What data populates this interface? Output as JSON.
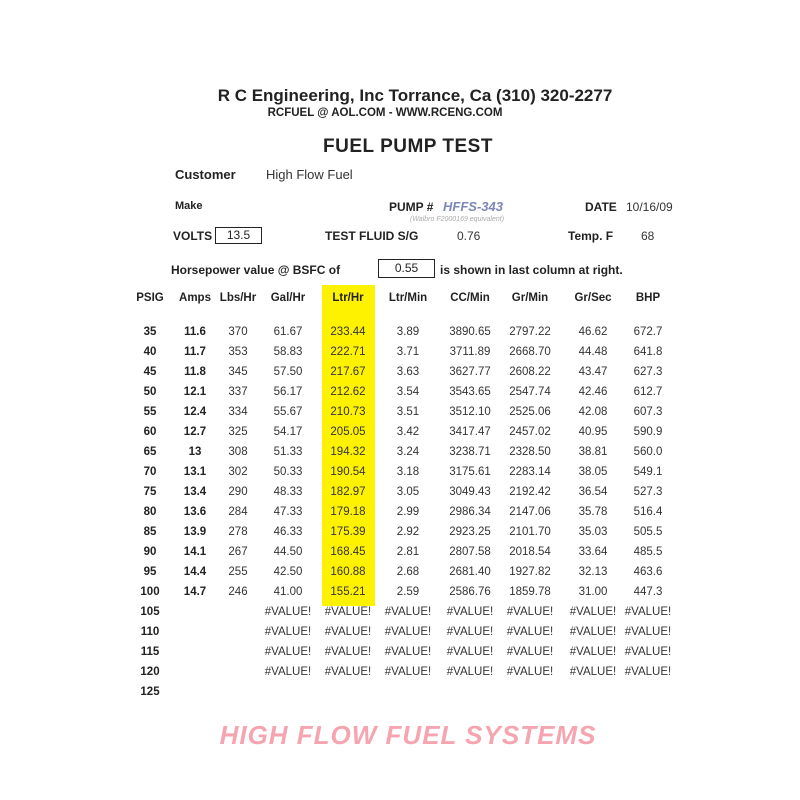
{
  "header": {
    "company": "R C Engineering, Inc  Torrance,  Ca  (310) 320-2277",
    "contact": "RCFUEL @ AOL.COM -  WWW.RCENG.COM",
    "title": "FUEL PUMP TEST"
  },
  "info": {
    "customer_label": "Customer",
    "customer_value": "High Flow Fuel",
    "make_label": "Make",
    "pump_label": "PUMP #",
    "pump_value": "HFFS-343",
    "pump_note": "(Walbro F2000169 equivalent)",
    "date_label": "DATE",
    "date_value": "10/16/09",
    "volts_label": "VOLTS",
    "volts_value": "13.5",
    "fluid_label": "TEST FLUID  S/G",
    "fluid_value": "0.76",
    "temp_label": "Temp.  F",
    "temp_value": "68",
    "hp_label": "Horsepower value @  BSFC of",
    "bsfc_value": "0.55",
    "hp_suffix": "is shown in last column at right."
  },
  "watermark": "HIGH FLOW FUEL SYSTEMS",
  "colors": {
    "highlight": "#fff200",
    "pump": "#7c86b8",
    "watermark": "#ee5a6e"
  },
  "table": {
    "columns": [
      "PSIG",
      "Amps",
      "Lbs/Hr",
      "Gal/Hr",
      "Ltr/Hr",
      "Ltr/Min",
      "CC/Min",
      "Gr/Min",
      "Gr/Sec",
      "BHP"
    ],
    "rows": [
      [
        "35",
        "11.6",
        "370",
        "61.67",
        "233.44",
        "3.89",
        "3890.65",
        "2797.22",
        "46.62",
        "672.7"
      ],
      [
        "40",
        "11.7",
        "353",
        "58.83",
        "222.71",
        "3.71",
        "3711.89",
        "2668.70",
        "44.48",
        "641.8"
      ],
      [
        "45",
        "11.8",
        "345",
        "57.50",
        "217.67",
        "3.63",
        "3627.77",
        "2608.22",
        "43.47",
        "627.3"
      ],
      [
        "50",
        "12.1",
        "337",
        "56.17",
        "212.62",
        "3.54",
        "3543.65",
        "2547.74",
        "42.46",
        "612.7"
      ],
      [
        "55",
        "12.4",
        "334",
        "55.67",
        "210.73",
        "3.51",
        "3512.10",
        "2525.06",
        "42.08",
        "607.3"
      ],
      [
        "60",
        "12.7",
        "325",
        "54.17",
        "205.05",
        "3.42",
        "3417.47",
        "2457.02",
        "40.95",
        "590.9"
      ],
      [
        "65",
        "13",
        "308",
        "51.33",
        "194.32",
        "3.24",
        "3238.71",
        "2328.50",
        "38.81",
        "560.0"
      ],
      [
        "70",
        "13.1",
        "302",
        "50.33",
        "190.54",
        "3.18",
        "3175.61",
        "2283.14",
        "38.05",
        "549.1"
      ],
      [
        "75",
        "13.4",
        "290",
        "48.33",
        "182.97",
        "3.05",
        "3049.43",
        "2192.42",
        "36.54",
        "527.3"
      ],
      [
        "80",
        "13.6",
        "284",
        "47.33",
        "179.18",
        "2.99",
        "2986.34",
        "2147.06",
        "35.78",
        "516.4"
      ],
      [
        "85",
        "13.9",
        "278",
        "46.33",
        "175.39",
        "2.92",
        "2923.25",
        "2101.70",
        "35.03",
        "505.5"
      ],
      [
        "90",
        "14.1",
        "267",
        "44.50",
        "168.45",
        "2.81",
        "2807.58",
        "2018.54",
        "33.64",
        "485.5"
      ],
      [
        "95",
        "14.4",
        "255",
        "42.50",
        "160.88",
        "2.68",
        "2681.40",
        "1927.82",
        "32.13",
        "463.6"
      ],
      [
        "100",
        "14.7",
        "246",
        "41.00",
        "155.21",
        "2.59",
        "2586.76",
        "1859.78",
        "31.00",
        "447.3"
      ],
      [
        "105",
        "",
        "",
        "#VALUE!",
        "#VALUE!",
        "#VALUE!",
        "#VALUE!",
        "#VALUE!",
        "#VALUE!",
        "#VALUE!"
      ],
      [
        "110",
        "",
        "",
        "#VALUE!",
        "#VALUE!",
        "#VALUE!",
        "#VALUE!",
        "#VALUE!",
        "#VALUE!",
        "#VALUE!"
      ],
      [
        "115",
        "",
        "",
        "#VALUE!",
        "#VALUE!",
        "#VALUE!",
        "#VALUE!",
        "#VALUE!",
        "#VALUE!",
        "#VALUE!"
      ],
      [
        "120",
        "",
        "",
        "#VALUE!",
        "#VALUE!",
        "#VALUE!",
        "#VALUE!",
        "#VALUE!",
        "#VALUE!",
        "#VALUE!"
      ],
      [
        "125",
        "",
        "",
        "",
        "",
        "",
        "",
        "",
        "",
        ""
      ]
    ]
  }
}
